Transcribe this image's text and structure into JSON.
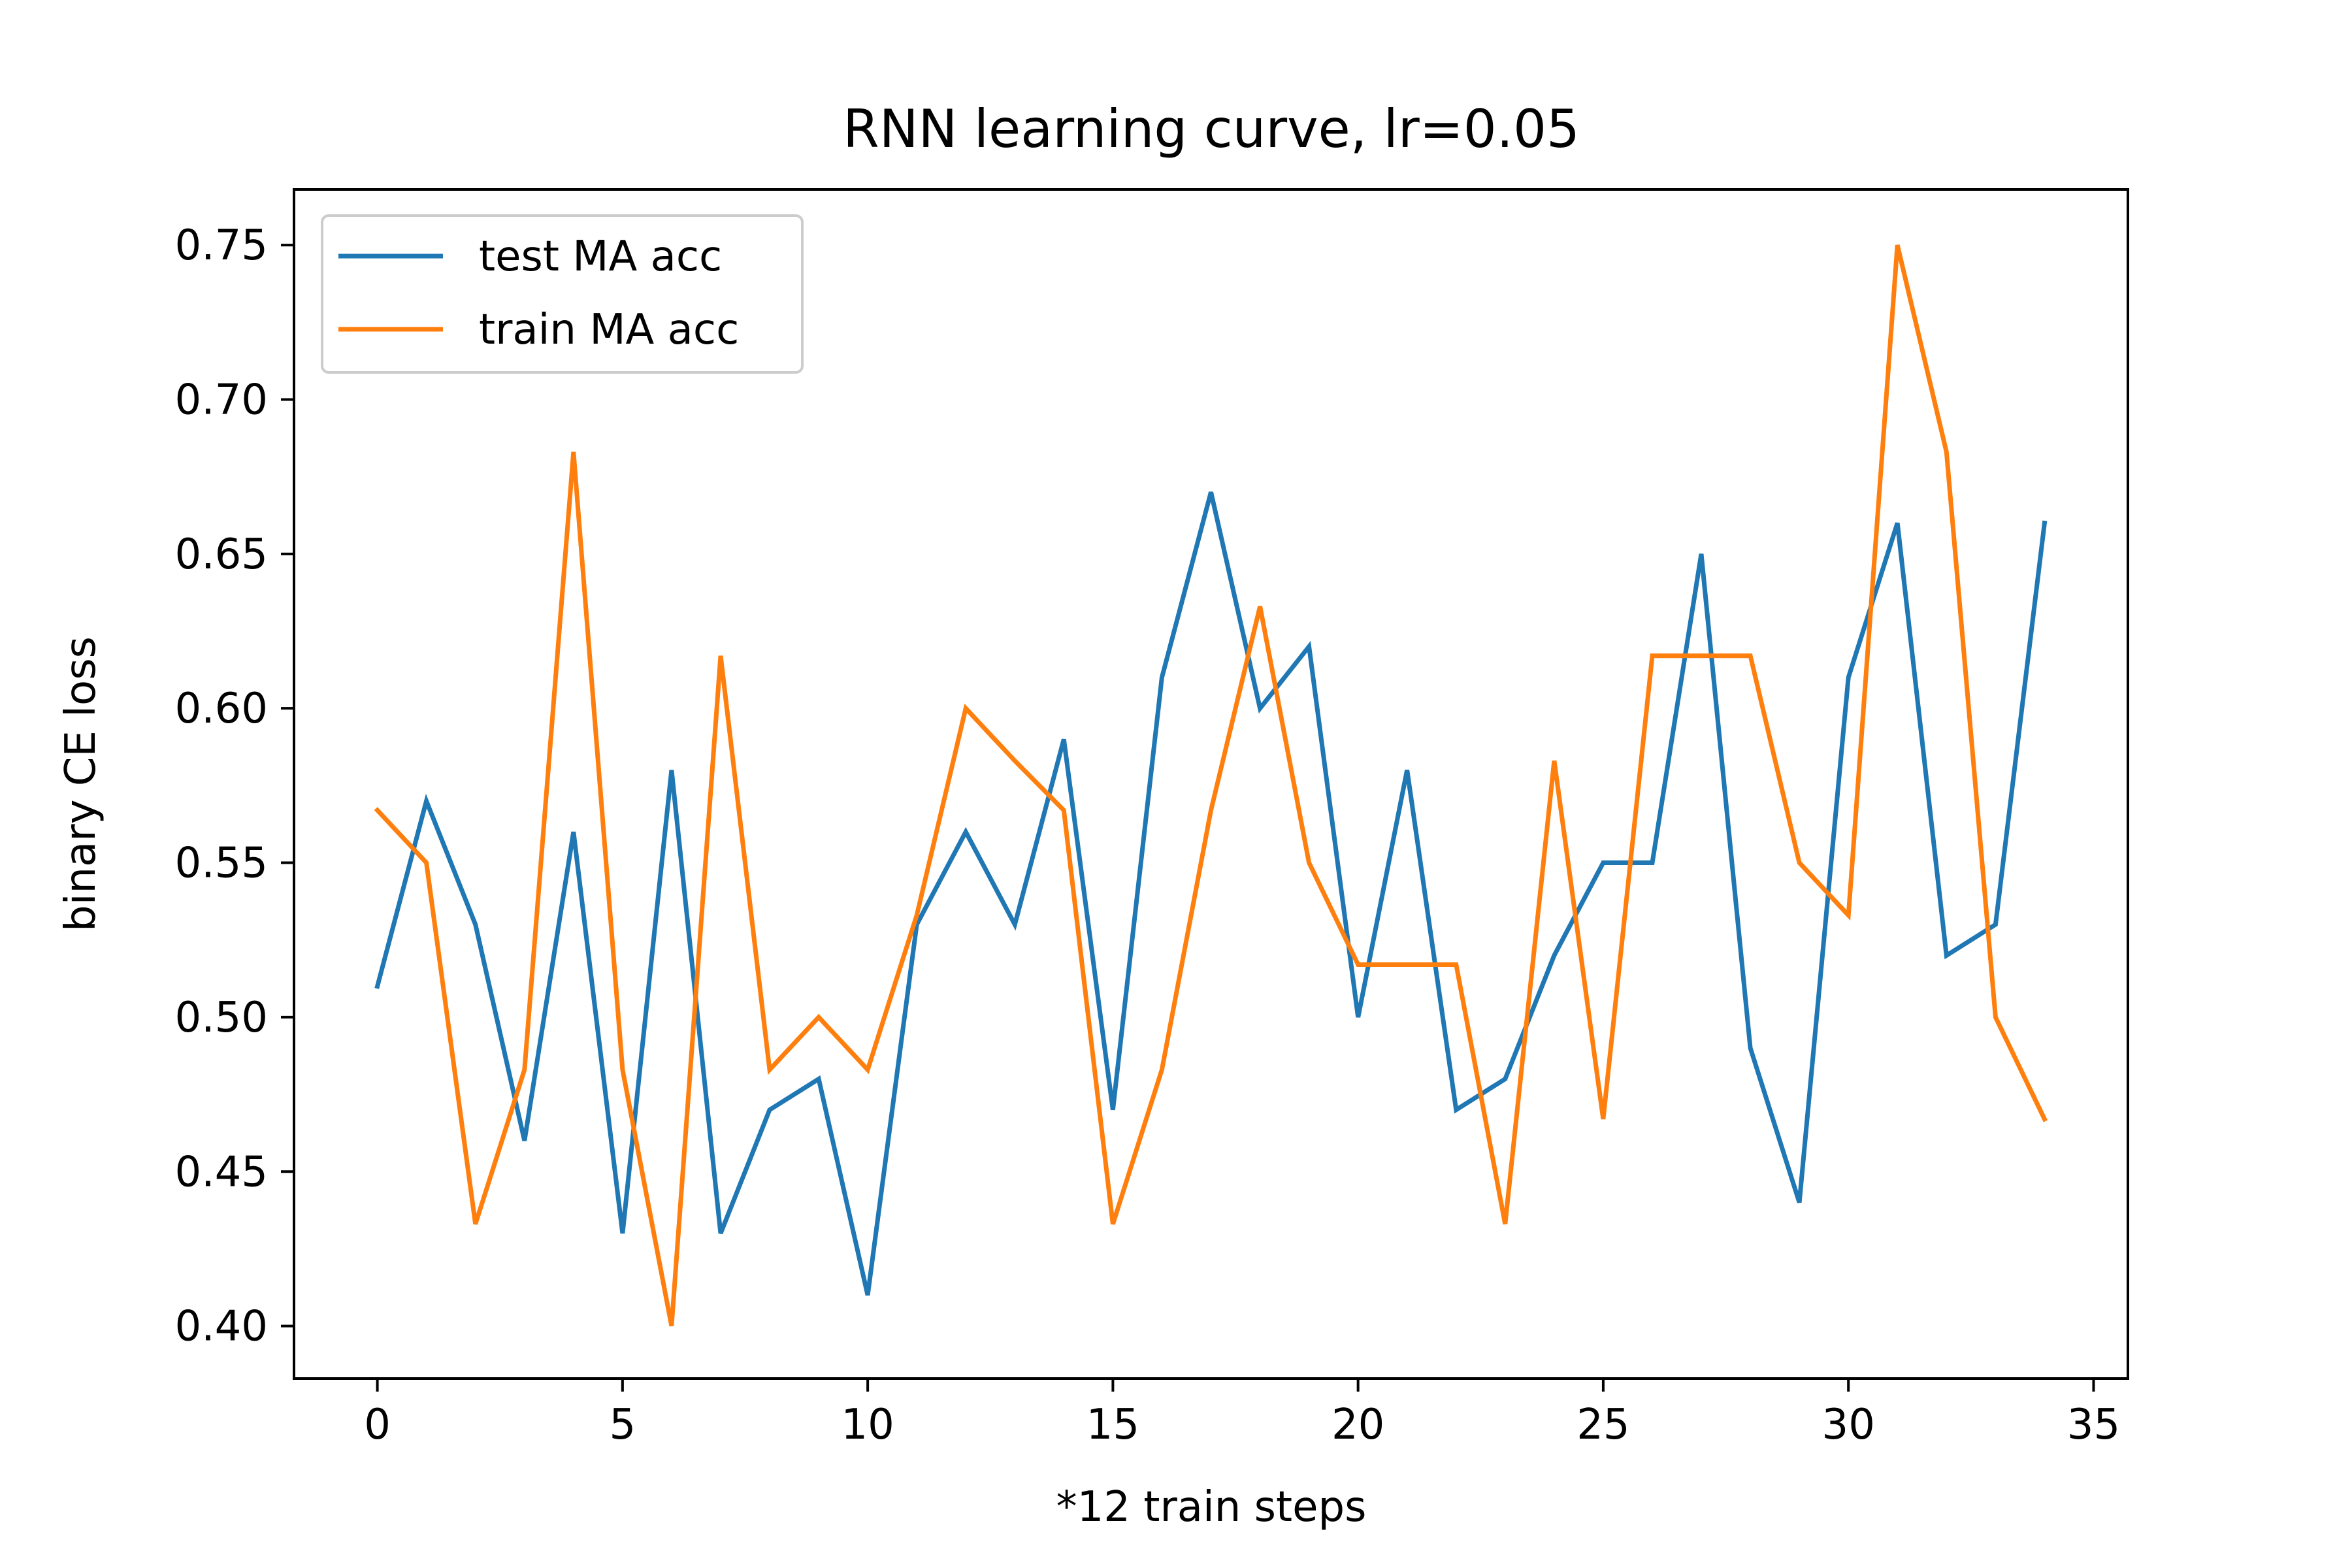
{
  "chart_data": {
    "type": "line",
    "title": "RNN learning curve, lr=0.05",
    "xlabel": "*12 train steps",
    "ylabel": "binary CE loss",
    "xlim": [
      -1.7,
      35.7
    ],
    "ylim": [
      0.383,
      0.768
    ],
    "xticks": [
      0,
      5,
      10,
      15,
      20,
      25,
      30,
      35
    ],
    "yticks": [
      0.4,
      0.45,
      0.5,
      0.55,
      0.6,
      0.65,
      0.7,
      0.75
    ],
    "xtick_labels": [
      "0",
      "5",
      "10",
      "15",
      "20",
      "25",
      "30",
      "35"
    ],
    "ytick_labels": [
      "0.40",
      "0.45",
      "0.50",
      "0.55",
      "0.60",
      "0.65",
      "0.70",
      "0.75"
    ],
    "legend_position": "top-left",
    "grid": false,
    "x": [
      0,
      1,
      2,
      3,
      4,
      5,
      6,
      7,
      8,
      9,
      10,
      11,
      12,
      13,
      14,
      15,
      16,
      17,
      18,
      19,
      20,
      21,
      22,
      23,
      24,
      25,
      26,
      27,
      28,
      29,
      30,
      31,
      32,
      33,
      34
    ],
    "series": [
      {
        "name": "test MA acc",
        "color": "#1f77b4",
        "values": [
          0.51,
          0.57,
          0.53,
          0.46,
          0.56,
          0.43,
          0.58,
          0.43,
          0.47,
          0.48,
          0.41,
          0.53,
          0.56,
          0.53,
          0.59,
          0.47,
          0.61,
          0.67,
          0.6,
          0.62,
          0.5,
          0.58,
          0.47,
          0.48,
          0.52,
          0.55,
          0.55,
          0.65,
          0.49,
          0.44,
          0.61,
          0.66,
          0.52,
          0.53,
          0.66
        ]
      },
      {
        "name": "train MA acc",
        "color": "#ff7f0e",
        "values": [
          0.567,
          0.55,
          0.433,
          0.483,
          0.683,
          0.483,
          0.4,
          0.617,
          0.483,
          0.5,
          0.483,
          0.533,
          0.6,
          0.583,
          0.567,
          0.433,
          0.483,
          0.567,
          0.633,
          0.55,
          0.517,
          0.517,
          0.517,
          0.433,
          0.583,
          0.467,
          0.617,
          0.617,
          0.617,
          0.55,
          0.533,
          0.75,
          0.683,
          0.5,
          0.467
        ]
      }
    ]
  }
}
